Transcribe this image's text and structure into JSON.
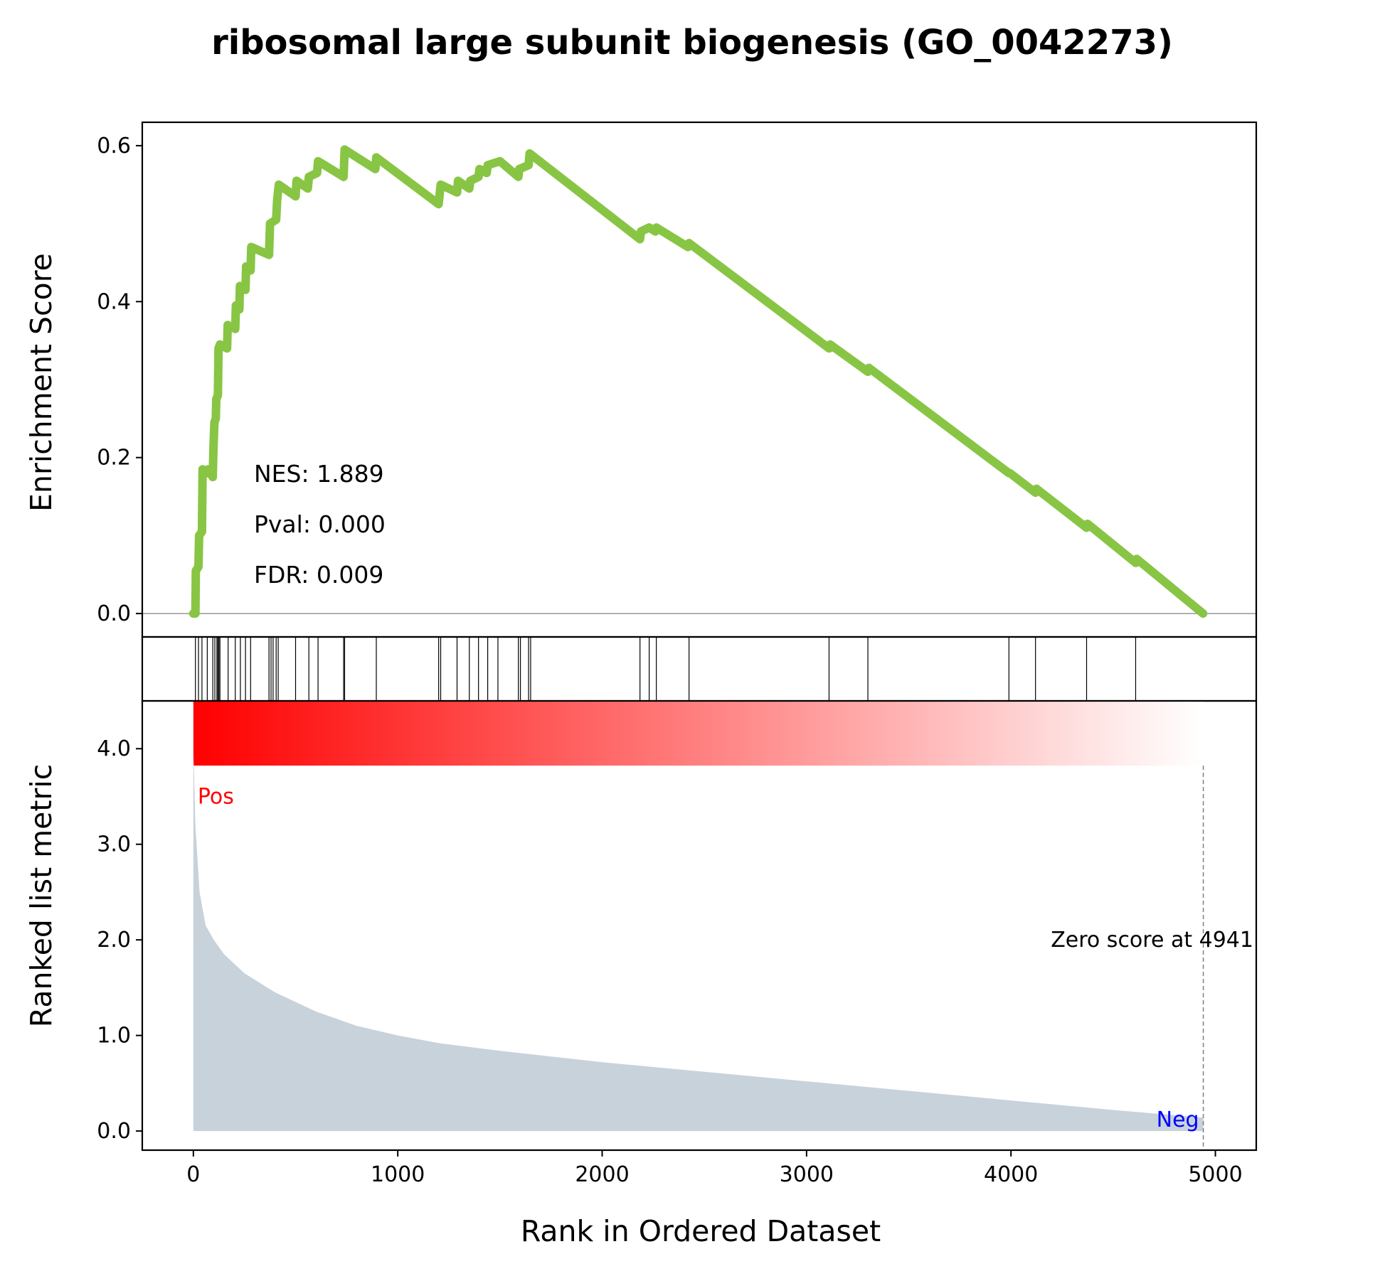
{
  "chart_data": {
    "type": "line",
    "title": "ribosomal large subunit biogenesis (GO_0042273)",
    "xlabel": "Rank in Ordered Dataset",
    "xlim": [
      -250,
      5200
    ],
    "x_ticks": [
      0,
      1000,
      2000,
      3000,
      4000,
      5000
    ],
    "enrichment": {
      "ylabel": "Enrichment Score",
      "ylim": [
        -0.03,
        0.63
      ],
      "y_ticks": [
        0.0,
        0.2,
        0.4,
        0.6
      ],
      "y_tick_labels": [
        "0.0",
        "0.2",
        "0.4",
        "0.6"
      ],
      "line_color": "#88c544",
      "stats": [
        "NES: 1.889",
        "Pval: 0.000",
        "FDR: 0.009"
      ],
      "points": [
        [
          0,
          0.0
        ],
        [
          10,
          0.0
        ],
        [
          12,
          0.055
        ],
        [
          25,
          0.06
        ],
        [
          28,
          0.1
        ],
        [
          42,
          0.105
        ],
        [
          45,
          0.185
        ],
        [
          68,
          0.18
        ],
        [
          72,
          0.185
        ],
        [
          95,
          0.175
        ],
        [
          98,
          0.21
        ],
        [
          103,
          0.245
        ],
        [
          110,
          0.25
        ],
        [
          112,
          0.275
        ],
        [
          120,
          0.28
        ],
        [
          123,
          0.34
        ],
        [
          130,
          0.345
        ],
        [
          165,
          0.34
        ],
        [
          168,
          0.37
        ],
        [
          205,
          0.365
        ],
        [
          208,
          0.395
        ],
        [
          225,
          0.39
        ],
        [
          228,
          0.42
        ],
        [
          255,
          0.415
        ],
        [
          258,
          0.445
        ],
        [
          280,
          0.44
        ],
        [
          283,
          0.47
        ],
        [
          370,
          0.46
        ],
        [
          375,
          0.5
        ],
        [
          405,
          0.505
        ],
        [
          410,
          0.53
        ],
        [
          418,
          0.55
        ],
        [
          500,
          0.535
        ],
        [
          505,
          0.555
        ],
        [
          560,
          0.545
        ],
        [
          565,
          0.56
        ],
        [
          605,
          0.565
        ],
        [
          610,
          0.58
        ],
        [
          735,
          0.56
        ],
        [
          740,
          0.595
        ],
        [
          890,
          0.57
        ],
        [
          895,
          0.585
        ],
        [
          1200,
          0.525
        ],
        [
          1210,
          0.55
        ],
        [
          1290,
          0.54
        ],
        [
          1295,
          0.555
        ],
        [
          1350,
          0.545
        ],
        [
          1355,
          0.555
        ],
        [
          1395,
          0.56
        ],
        [
          1400,
          0.57
        ],
        [
          1435,
          0.565
        ],
        [
          1440,
          0.575
        ],
        [
          1500,
          0.58
        ],
        [
          1590,
          0.56
        ],
        [
          1595,
          0.57
        ],
        [
          1640,
          0.575
        ],
        [
          1645,
          0.59
        ],
        [
          2185,
          0.48
        ],
        [
          2190,
          0.49
        ],
        [
          2230,
          0.495
        ],
        [
          2260,
          0.49
        ],
        [
          2265,
          0.495
        ],
        [
          2420,
          0.47
        ],
        [
          2425,
          0.475
        ],
        [
          3110,
          0.34
        ],
        [
          3115,
          0.345
        ],
        [
          3300,
          0.31
        ],
        [
          3305,
          0.315
        ],
        [
          3990,
          0.18
        ],
        [
          3995,
          0.18
        ],
        [
          4120,
          0.155
        ],
        [
          4125,
          0.16
        ],
        [
          4370,
          0.11
        ],
        [
          4375,
          0.115
        ],
        [
          4610,
          0.065
        ],
        [
          4615,
          0.07
        ],
        [
          4940,
          0.0
        ]
      ]
    },
    "hits": [
      10,
      25,
      42,
      68,
      95,
      105,
      115,
      120,
      125,
      130,
      170,
      205,
      230,
      255,
      280,
      370,
      380,
      390,
      405,
      415,
      500,
      565,
      610,
      735,
      740,
      895,
      1200,
      1210,
      1290,
      1350,
      1395,
      1440,
      1490,
      1590,
      1600,
      1640,
      1650,
      2185,
      2230,
      2265,
      2425,
      3110,
      3300,
      3990,
      4120,
      4370,
      4610
    ],
    "ranked_metric": {
      "ylabel": "Ranked list metric",
      "ylim": [
        -0.2,
        4.5
      ],
      "y_ticks": [
        0.0,
        1.0,
        2.0,
        3.0,
        4.0
      ],
      "y_tick_labels": [
        "0.0",
        "1.0",
        "2.0",
        "3.0",
        "4.0"
      ],
      "fill_color": "#c8d2db",
      "points": [
        [
          0,
          4.0
        ],
        [
          10,
          3.2
        ],
        [
          30,
          2.5
        ],
        [
          60,
          2.15
        ],
        [
          100,
          2.0
        ],
        [
          150,
          1.85
        ],
        [
          250,
          1.65
        ],
        [
          400,
          1.45
        ],
        [
          600,
          1.25
        ],
        [
          800,
          1.1
        ],
        [
          1000,
          1.0
        ],
        [
          1200,
          0.92
        ],
        [
          1500,
          0.84
        ],
        [
          2000,
          0.72
        ],
        [
          2500,
          0.62
        ],
        [
          3000,
          0.52
        ],
        [
          3500,
          0.42
        ],
        [
          4000,
          0.32
        ],
        [
          4500,
          0.22
        ],
        [
          4941,
          0.14
        ]
      ],
      "pos_label": "Pos",
      "pos_color": "#ff0000",
      "neg_label": "Neg",
      "neg_color": "#0000ff",
      "zero_score_rank": 4941,
      "zero_score_label": "Zero score at 4941"
    },
    "gradient": {
      "start_color": "#ff0000",
      "end_color": "#ffffff",
      "x_range": [
        0,
        4941
      ]
    }
  }
}
